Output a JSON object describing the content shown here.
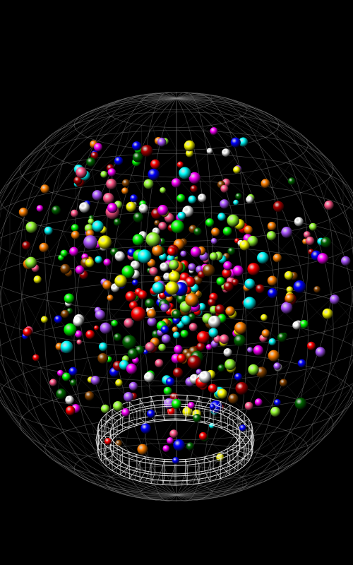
{
  "scene": {
    "background_color": "#000000",
    "wireframe_color": "#8a8a8a",
    "ring_color": "#e8e8e8",
    "ball_colors": [
      "#ff0000",
      "#00ff00",
      "#0000ff",
      "#ffff00",
      "#ff00ff",
      "#00ffff",
      "#ff8000",
      "#aa55ff",
      "#ff5588",
      "#99ff33",
      "#ffffff",
      "#aa0000",
      "#006600",
      "#884400"
    ],
    "ball_count": 520,
    "seed": 7
  }
}
